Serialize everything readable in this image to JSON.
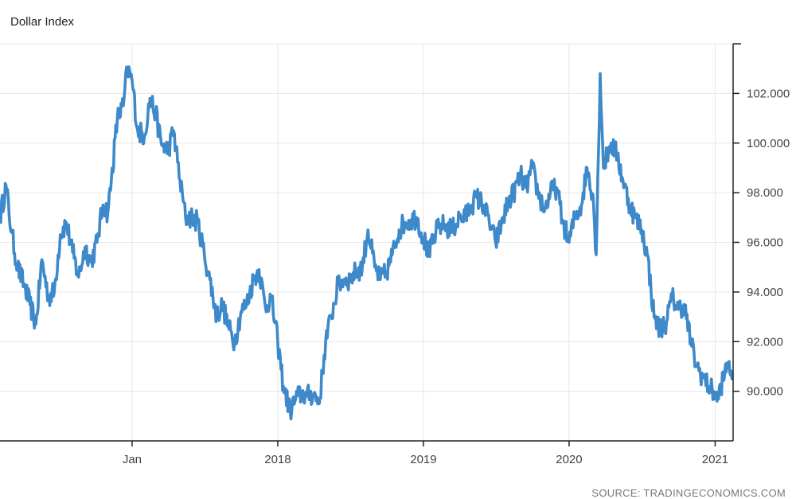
{
  "chart_data": {
    "type": "line",
    "title": "Dollar Index",
    "source": "SOURCE: TRADINGECONOMICS.COM",
    "x_tick_labels": [
      "Jan",
      "2018",
      "2019",
      "2020",
      "2021"
    ],
    "x_tick_values": [
      "2017-01-01",
      "2018-01-01",
      "2019-01-01",
      "2020-01-01",
      "2021-01-01"
    ],
    "y_tick_labels": [
      "90.000",
      "92.000",
      "94.000",
      "96.000",
      "98.000",
      "100.000",
      "102.000"
    ],
    "y_tick_values": [
      90,
      92,
      94,
      96,
      98,
      100,
      102
    ],
    "xlim": [
      "2016-02-05",
      "2021-02-15"
    ],
    "ylim": [
      88.0,
      104.0
    ],
    "grid": true,
    "y_axis_position": "right",
    "line_color": "#3d89c9",
    "series": [
      {
        "x": [
          "2016-02-05",
          "2016-02-20",
          "2016-03-05",
          "2016-03-20",
          "2016-04-05",
          "2016-04-20",
          "2016-05-05",
          "2016-05-20",
          "2016-06-05",
          "2016-06-20",
          "2016-07-05",
          "2016-07-20",
          "2016-08-05",
          "2016-08-20",
          "2016-09-05",
          "2016-09-20",
          "2016-10-05",
          "2016-10-20",
          "2016-11-01",
          "2016-11-10",
          "2016-11-25",
          "2016-12-10",
          "2016-12-20",
          "2017-01-01",
          "2017-01-15",
          "2017-02-01",
          "2017-02-15",
          "2017-03-01",
          "2017-03-15",
          "2017-04-01",
          "2017-04-15",
          "2017-05-01",
          "2017-05-15",
          "2017-06-01",
          "2017-06-15",
          "2017-07-01",
          "2017-07-15",
          "2017-08-01",
          "2017-08-15",
          "2017-09-01",
          "2017-09-15",
          "2017-10-01",
          "2017-10-15",
          "2017-11-01",
          "2017-11-15",
          "2017-12-01",
          "2017-12-15",
          "2018-01-01",
          "2018-01-15",
          "2018-02-01",
          "2018-02-15",
          "2018-03-01",
          "2018-03-15",
          "2018-04-01",
          "2018-04-15",
          "2018-05-01",
          "2018-05-15",
          "2018-06-01",
          "2018-06-15",
          "2018-07-01",
          "2018-07-15",
          "2018-08-01",
          "2018-08-15",
          "2018-09-01",
          "2018-09-15",
          "2018-10-01",
          "2018-10-15",
          "2018-11-01",
          "2018-11-15",
          "2018-12-01",
          "2018-12-15",
          "2019-01-01",
          "2019-01-15",
          "2019-02-01",
          "2019-02-15",
          "2019-03-01",
          "2019-03-15",
          "2019-04-01",
          "2019-04-15",
          "2019-05-01",
          "2019-05-15",
          "2019-06-01",
          "2019-06-15",
          "2019-07-01",
          "2019-07-15",
          "2019-08-01",
          "2019-08-15",
          "2019-09-01",
          "2019-09-15",
          "2019-10-01",
          "2019-10-15",
          "2019-11-01",
          "2019-11-15",
          "2019-12-01",
          "2019-12-15",
          "2020-01-01",
          "2020-01-15",
          "2020-02-01",
          "2020-02-15",
          "2020-03-01",
          "2020-03-09",
          "2020-03-19",
          "2020-03-27",
          "2020-04-05",
          "2020-04-15",
          "2020-05-01",
          "2020-05-15",
          "2020-06-01",
          "2020-06-15",
          "2020-07-01",
          "2020-07-15",
          "2020-08-01",
          "2020-08-15",
          "2020-09-01",
          "2020-09-15",
          "2020-10-01",
          "2020-10-15",
          "2020-11-01",
          "2020-11-15",
          "2020-12-01",
          "2020-12-15",
          "2021-01-01",
          "2021-01-06",
          "2021-01-15",
          "2021-01-25",
          "2021-02-05",
          "2021-02-12"
        ],
        "values": [
          97.0,
          98.3,
          96.4,
          95.0,
          94.3,
          93.5,
          92.7,
          95.3,
          93.8,
          94.0,
          96.3,
          96.8,
          95.6,
          94.6,
          95.8,
          95.2,
          96.0,
          97.5,
          97.2,
          98.5,
          101.0,
          101.5,
          103.0,
          102.5,
          100.5,
          100.3,
          101.8,
          101.2,
          100.0,
          99.7,
          100.5,
          98.5,
          97.0,
          97.0,
          96.8,
          95.5,
          94.5,
          93.0,
          93.5,
          92.5,
          92.0,
          93.2,
          93.5,
          94.5,
          94.9,
          93.4,
          93.8,
          92.0,
          90.2,
          89.2,
          89.7,
          89.9,
          89.8,
          89.9,
          89.5,
          92.0,
          93.0,
          94.3,
          94.5,
          94.5,
          94.8,
          95.0,
          96.5,
          95.0,
          94.5,
          94.8,
          95.5,
          96.5,
          96.8,
          96.9,
          97.0,
          96.2,
          95.5,
          96.4,
          96.7,
          96.6,
          96.5,
          97.0,
          97.0,
          97.5,
          97.8,
          97.5,
          96.8,
          96.0,
          96.7,
          97.6,
          98.0,
          98.7,
          98.2,
          99.0,
          98.0,
          97.3,
          98.0,
          98.2,
          96.9,
          96.0,
          97.0,
          97.5,
          99.0,
          97.9,
          95.5,
          102.8,
          99.0,
          99.5,
          100.0,
          99.5,
          98.5,
          97.5,
          97.0,
          96.5,
          95.5,
          93.0,
          92.5,
          92.8,
          93.8,
          93.3,
          93.5,
          92.0,
          91.0,
          90.6,
          90.2,
          89.9,
          89.6,
          90.2,
          90.7,
          91.2,
          90.5
        ]
      }
    ]
  }
}
